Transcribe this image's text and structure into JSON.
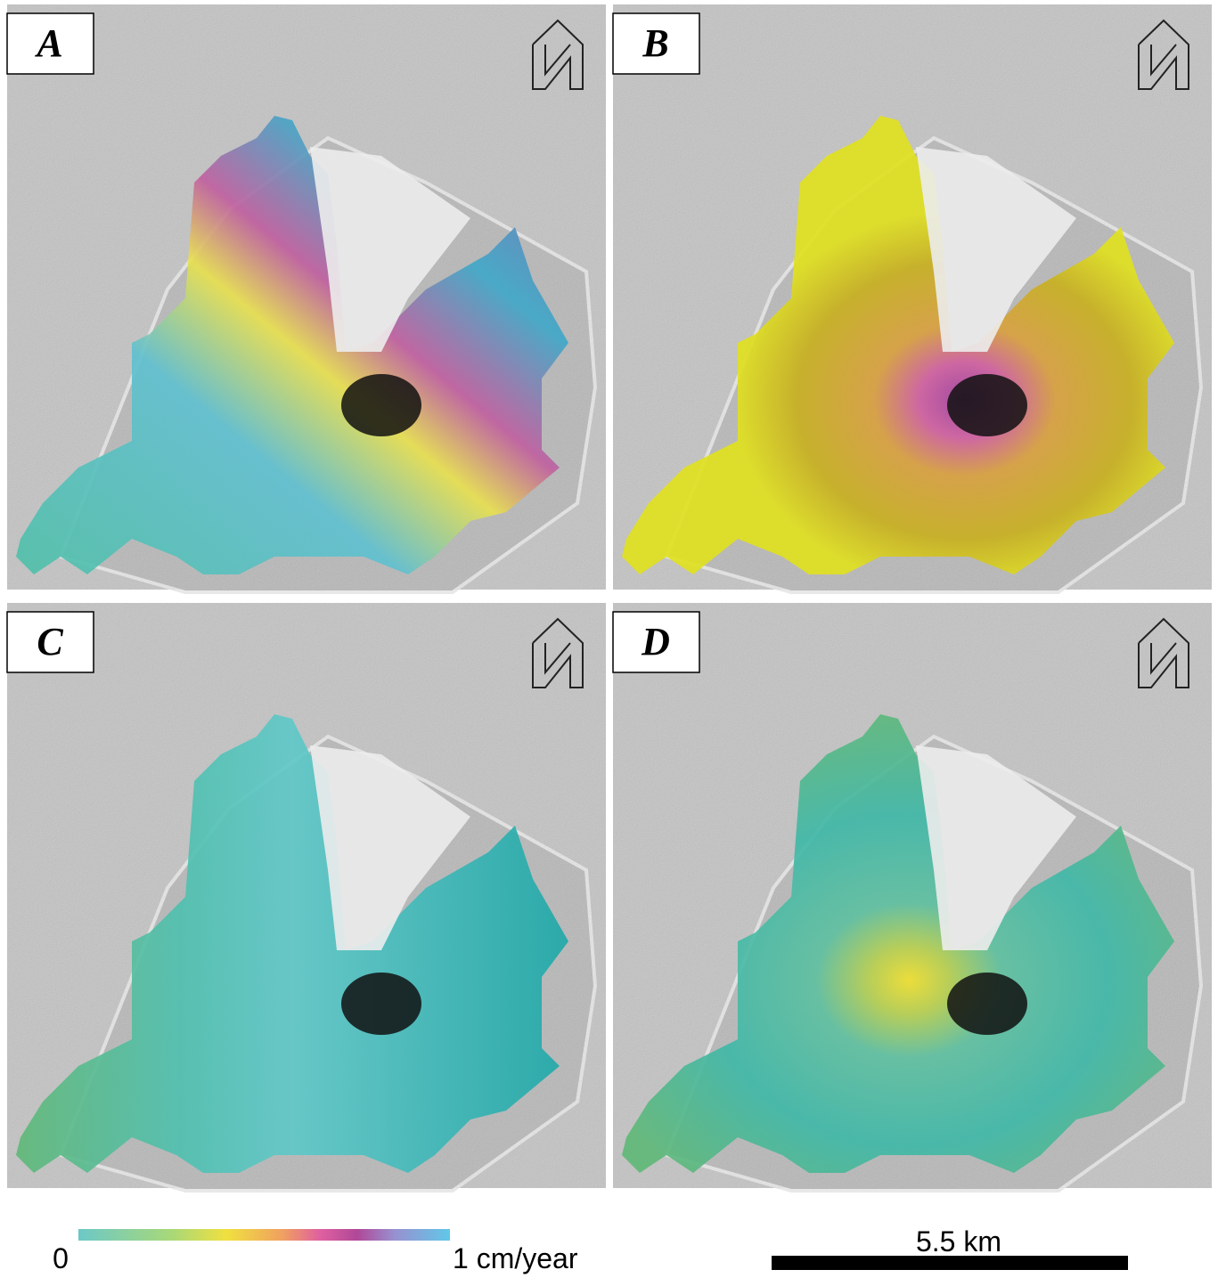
{
  "panels": [
    {
      "label": "A"
    },
    {
      "label": "B"
    },
    {
      "label": "C"
    },
    {
      "label": "D"
    }
  ],
  "colorbar": {
    "min_label": "0",
    "max_label": "1 cm/year"
  },
  "scale_bar": {
    "label": "5.5 km"
  }
}
